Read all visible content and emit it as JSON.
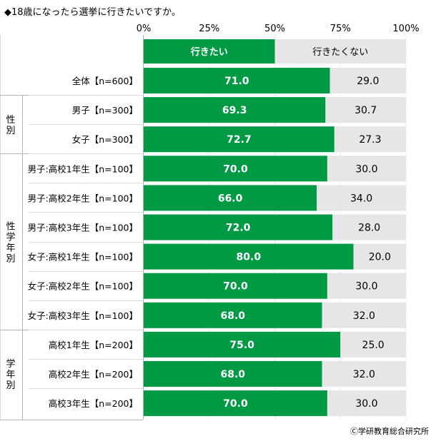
{
  "title": "◆18歳になったら選挙に行きたいですか。",
  "credit": "Ⓒ学研教育総合研究所",
  "colors": {
    "yes": "#009944",
    "no": "#e6e6e6",
    "grid": "#c8c8c8"
  },
  "chart_data": {
    "type": "bar",
    "orientation": "horizontal",
    "stacked": true,
    "percent": true,
    "xlim": [
      0,
      100
    ],
    "xticks": [
      "0%",
      "25%",
      "50%",
      "75%",
      "100%"
    ],
    "grid": true,
    "legend": "top",
    "series": [
      {
        "name": "行きたい",
        "values": [
          71.0,
          69.3,
          72.7,
          70.0,
          66.0,
          72.0,
          80.0,
          70.0,
          68.0,
          75.0,
          68.0,
          70.0
        ]
      },
      {
        "name": "行きたくない",
        "values": [
          29.0,
          30.7,
          27.3,
          30.0,
          34.0,
          28.0,
          20.0,
          30.0,
          32.0,
          25.0,
          32.0,
          30.0
        ]
      }
    ],
    "categories": [
      "全体【n=600】",
      "男子【n=300】",
      "女子【n=300】",
      "男子:高校1年生【n=100】",
      "男子:高校2年生【n=100】",
      "男子:高校3年生【n=100】",
      "女子:高校1年生【n=100】",
      "女子:高校2年生【n=100】",
      "女子:高校3年生【n=100】",
      "高校1年生【n=200】",
      "高校2年生【n=200】",
      "高校3年生【n=200】"
    ],
    "groups": [
      {
        "label": "性別",
        "rows": [
          1,
          2
        ]
      },
      {
        "label": "性学年別",
        "rows": [
          3,
          4,
          5,
          6,
          7,
          8
        ]
      },
      {
        "label": "学年別",
        "rows": [
          9,
          10,
          11
        ]
      }
    ]
  }
}
